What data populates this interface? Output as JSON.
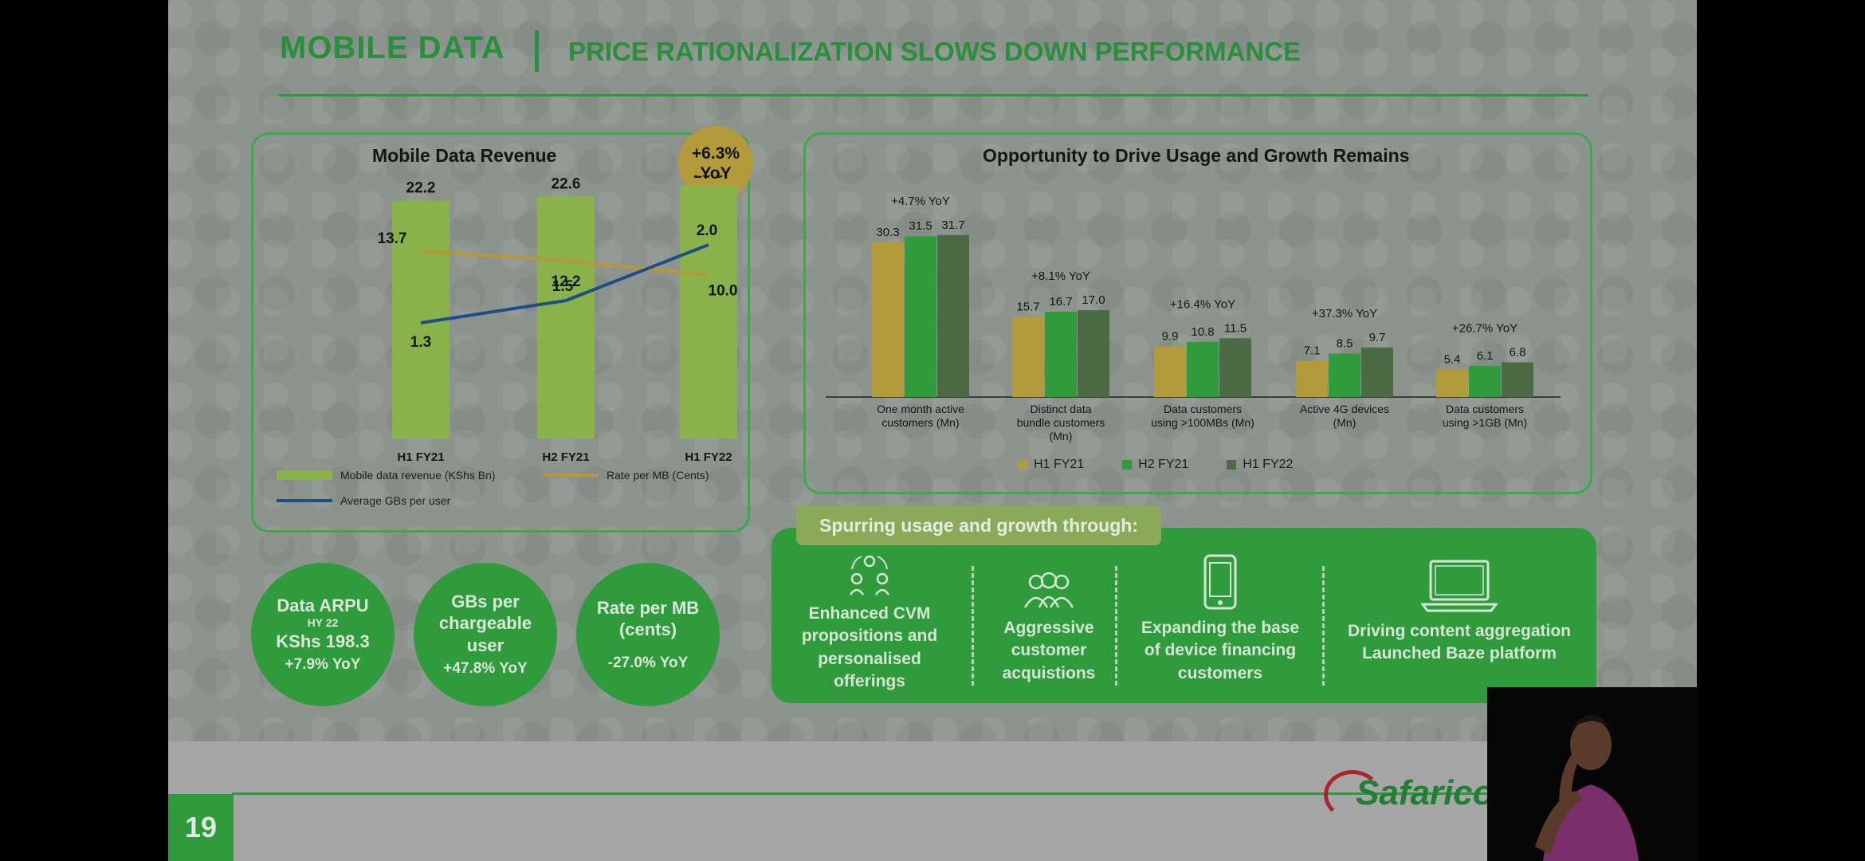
{
  "header": {
    "title": "MOBILE DATA",
    "subtitle": "PRICE RATIONALIZATION SLOWS DOWN PERFORMANCE"
  },
  "page_number": "19",
  "logo_text": "Safaricom",
  "left_panel": {
    "title": "Mobile Data Revenue",
    "badge_line1": "+6.3%",
    "badge_line2": "YoY",
    "legend": {
      "revenue": "Mobile data revenue (KShs Bn)",
      "rate": "Rate per MB (Cents)",
      "gbs": "Average GBs per user"
    }
  },
  "right_panel": {
    "title": "Opportunity to Drive Usage and Growth Remains",
    "legend": [
      "H1 FY21",
      "H2 FY21",
      "H1 FY22"
    ]
  },
  "stats": [
    {
      "title": "Data ARPU",
      "small": "HY 22",
      "line": "KShs 198.3",
      "value": "+7.9% YoY"
    },
    {
      "title": "GBs per chargeable user",
      "small": "",
      "line": "",
      "value": "+47.8% YoY"
    },
    {
      "title": "Rate per MB (cents)",
      "small": "",
      "line": "",
      "value": "-27.0% YoY"
    }
  ],
  "spurring": {
    "tag": "Spurring usage and growth through:",
    "items": [
      {
        "icon": "people-cycle-icon",
        "text": "Enhanced CVM propositions and personalised offerings"
      },
      {
        "icon": "group-icon",
        "text": "Aggressive customer acquistions"
      },
      {
        "icon": "phone-icon",
        "text": "Expanding the base of device financing customers"
      },
      {
        "icon": "laptop-icon",
        "text": "Driving content aggregation Launched Baze platform"
      }
    ]
  },
  "colors": {
    "green": "#2f9b3d",
    "gold": "#b39a3a",
    "dark_green": "#4b6b45",
    "blue": "#1f4e86",
    "orange": "#b7973a"
  },
  "chart_data": [
    {
      "type": "bar",
      "title": "Mobile Data Revenue",
      "categories": [
        "H1 FY21",
        "H2 FY21",
        "H1 FY22"
      ],
      "series": [
        {
          "name": "Mobile data revenue (KShs Bn)",
          "type": "bar",
          "values": [
            22.2,
            22.6,
            23.6
          ],
          "labels": [
            "22.2",
            "22.6",
            "23.6"
          ]
        },
        {
          "name": "Rate per MB (Cents)",
          "type": "line",
          "values": [
            13.7,
            12.2,
            10.0
          ],
          "labels": [
            "13.7",
            "12.2",
            "10.0"
          ]
        },
        {
          "name": "Average GBs per user",
          "type": "line",
          "values": [
            1.3,
            1.5,
            2.0
          ],
          "labels": [
            "1.3",
            "1.5",
            "2.0"
          ]
        }
      ],
      "ylim": [
        0,
        25
      ]
    },
    {
      "type": "bar",
      "title": "Opportunity to Drive Usage and Growth Remains",
      "categories": [
        "One month active customers (Mn)",
        "Distinct data bundle customers (Mn)",
        "Data customers using >100MBs (Mn)",
        "Active 4G devices (Mn)",
        "Data customers using >1GB (Mn)"
      ],
      "yoy": [
        "+4.7% YoY",
        "+8.1% YoY",
        "+16.4% YoY",
        "+37.3% YoY",
        "+26.7% YoY"
      ],
      "series": [
        {
          "name": "H1 FY21",
          "values": [
            30.3,
            15.7,
            9.9,
            7.1,
            5.4
          ],
          "labels": [
            "30.3",
            "15.7",
            "9.9",
            "7.1",
            "5.4"
          ]
        },
        {
          "name": "H2 FY21",
          "values": [
            31.5,
            16.7,
            10.8,
            8.5,
            6.1
          ],
          "labels": [
            "31.5",
            "16.7",
            "10.8",
            "8.5",
            "6.1"
          ]
        },
        {
          "name": "H1 FY22",
          "values": [
            31.7,
            17.0,
            11.5,
            9.7,
            6.8
          ],
          "labels": [
            "31.7",
            "17.0",
            "11.5",
            "9.7",
            "6.8"
          ]
        }
      ],
      "ylim": [
        0,
        32
      ]
    }
  ]
}
